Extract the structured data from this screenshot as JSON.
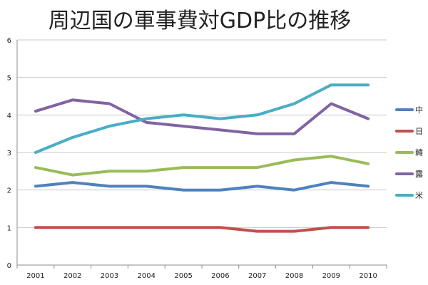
{
  "chart_data": {
    "type": "line",
    "title": "周辺国の軍事費対GDP比の推移",
    "x": [
      "2001",
      "2002",
      "2003",
      "2004",
      "2005",
      "2006",
      "2007",
      "2008",
      "2009",
      "2010"
    ],
    "ylim": [
      0,
      6
    ],
    "yticks": [
      0,
      1,
      2,
      3,
      4,
      5,
      6
    ],
    "grid": true,
    "legend_position": "right",
    "series": [
      {
        "name": "中",
        "color": "#4f81bd",
        "values": [
          2.1,
          2.2,
          2.1,
          2.1,
          2.0,
          2.0,
          2.1,
          2.0,
          2.2,
          2.1
        ]
      },
      {
        "name": "日",
        "color": "#c0504d",
        "values": [
          1.0,
          1.0,
          1.0,
          1.0,
          1.0,
          1.0,
          0.9,
          0.9,
          1.0,
          1.0
        ]
      },
      {
        "name": "韓",
        "color": "#9bbb59",
        "values": [
          2.6,
          2.4,
          2.5,
          2.5,
          2.6,
          2.6,
          2.6,
          2.8,
          2.9,
          2.7
        ]
      },
      {
        "name": "露",
        "color": "#8064a2",
        "values": [
          4.1,
          4.4,
          4.3,
          3.8,
          3.7,
          3.6,
          3.5,
          3.5,
          4.3,
          3.9
        ]
      },
      {
        "name": "米",
        "color": "#4bacc6",
        "values": [
          3.0,
          3.4,
          3.7,
          3.9,
          4.0,
          3.9,
          4.0,
          4.3,
          4.8,
          4.8
        ]
      }
    ]
  }
}
